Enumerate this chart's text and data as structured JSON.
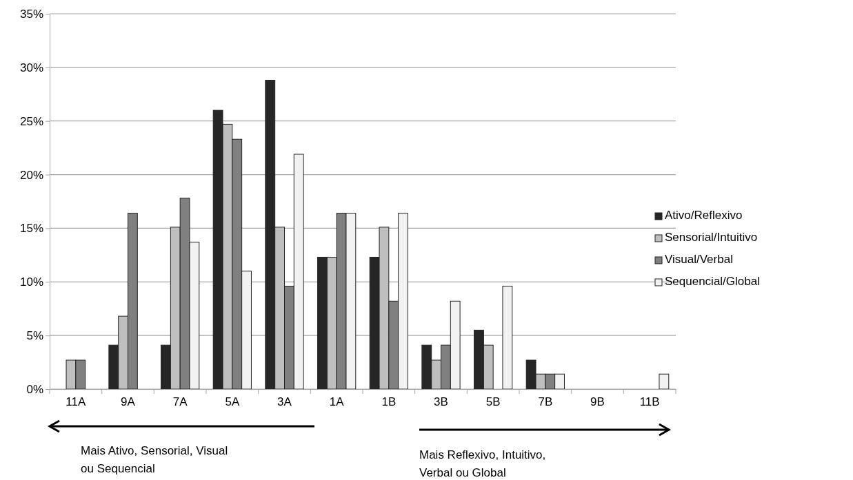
{
  "chart_data": {
    "type": "bar",
    "categories": [
      "11A",
      "9A",
      "7A",
      "5A",
      "3A",
      "1A",
      "1B",
      "3B",
      "5B",
      "7B",
      "9B",
      "11B"
    ],
    "series": [
      {
        "name": "Ativo/Reflexivo",
        "color": "#262626",
        "values": [
          0,
          4.1,
          4.1,
          26.0,
          28.8,
          12.3,
          12.3,
          4.1,
          5.5,
          2.7,
          0,
          0
        ]
      },
      {
        "name": "Sensorial/Intuitivo",
        "color": "#bfbfbf",
        "values": [
          2.7,
          6.8,
          15.1,
          24.7,
          15.1,
          12.3,
          15.1,
          2.7,
          4.1,
          1.4,
          0,
          0
        ]
      },
      {
        "name": "Visual/Verbal",
        "color": "#808080",
        "values": [
          2.7,
          16.4,
          17.8,
          23.3,
          9.6,
          16.4,
          8.2,
          4.1,
          0,
          1.4,
          0,
          0
        ]
      },
      {
        "name": "Sequencial/Global",
        "color": "#f2f2f2",
        "values": [
          0,
          0,
          13.7,
          11.0,
          21.9,
          16.4,
          16.4,
          8.2,
          9.6,
          1.4,
          0,
          1.4
        ]
      }
    ],
    "ylim": [
      0,
      35
    ],
    "yticks": [
      {
        "value": 0,
        "label": "0%"
      },
      {
        "value": 5,
        "label": "5%"
      },
      {
        "value": 10,
        "label": "10%"
      },
      {
        "value": 15,
        "label": "15%"
      },
      {
        "value": 20,
        "label": "20%"
      },
      {
        "value": 25,
        "label": "25%"
      },
      {
        "value": 30,
        "label": "30%"
      },
      {
        "value": 35,
        "label": "35%"
      }
    ],
    "grid": "y",
    "legend": "right",
    "annotations": [
      "Mais Ativo, Sensorial, Visual\nou Sequencial",
      "Mais Reflexivo, Intuitivo,\nVerbal ou Global"
    ]
  }
}
